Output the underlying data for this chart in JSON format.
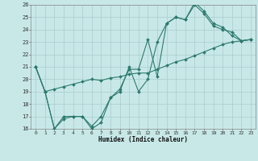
{
  "xlabel": "Humidex (Indice chaleur)",
  "bg_color": "#c8e8e8",
  "grid_color": "#aacccc",
  "line_color": "#2d7a6e",
  "xlim": [
    -0.5,
    23.5
  ],
  "ylim": [
    16,
    26
  ],
  "xticks": [
    0,
    1,
    2,
    3,
    4,
    5,
    6,
    7,
    8,
    9,
    10,
    11,
    12,
    13,
    14,
    15,
    16,
    17,
    18,
    19,
    20,
    21,
    22,
    23
  ],
  "yticks": [
    16,
    17,
    18,
    19,
    20,
    21,
    22,
    23,
    24,
    25,
    26
  ],
  "line1_x": [
    0,
    1,
    2,
    3,
    4,
    5,
    6,
    7,
    8,
    9,
    10,
    11,
    12,
    13,
    14,
    15,
    16,
    17,
    18,
    19,
    20,
    21,
    22,
    23
  ],
  "line1_y": [
    21.0,
    19.0,
    19.2,
    19.4,
    19.6,
    19.8,
    20.0,
    19.9,
    20.1,
    20.2,
    20.4,
    20.5,
    20.5,
    20.8,
    21.1,
    21.4,
    21.6,
    21.9,
    22.2,
    22.5,
    22.8,
    23.0,
    23.1,
    23.2
  ],
  "line2_x": [
    0,
    1,
    2,
    3,
    4,
    5,
    6,
    7,
    8,
    9,
    10,
    11,
    12,
    13,
    14,
    15,
    16,
    17,
    18,
    19,
    20,
    21,
    22,
    23
  ],
  "line2_y": [
    21.0,
    19.0,
    16.0,
    17.0,
    17.0,
    17.0,
    16.2,
    17.0,
    18.5,
    19.2,
    20.8,
    20.8,
    23.2,
    20.2,
    24.5,
    25.0,
    24.8,
    26.0,
    25.3,
    24.3,
    24.0,
    23.8,
    23.1,
    23.2
  ],
  "line3_x": [
    0,
    1,
    2,
    3,
    4,
    5,
    6,
    7,
    8,
    9,
    10,
    11,
    12,
    13,
    14,
    15,
    16,
    17,
    18,
    19,
    20,
    21,
    22,
    23
  ],
  "line3_y": [
    21.0,
    19.0,
    16.0,
    16.8,
    17.0,
    17.0,
    16.0,
    16.5,
    18.5,
    19.0,
    21.0,
    19.0,
    20.0,
    23.0,
    24.5,
    25.0,
    24.8,
    26.2,
    25.5,
    24.5,
    24.2,
    23.5,
    23.1,
    23.2
  ]
}
